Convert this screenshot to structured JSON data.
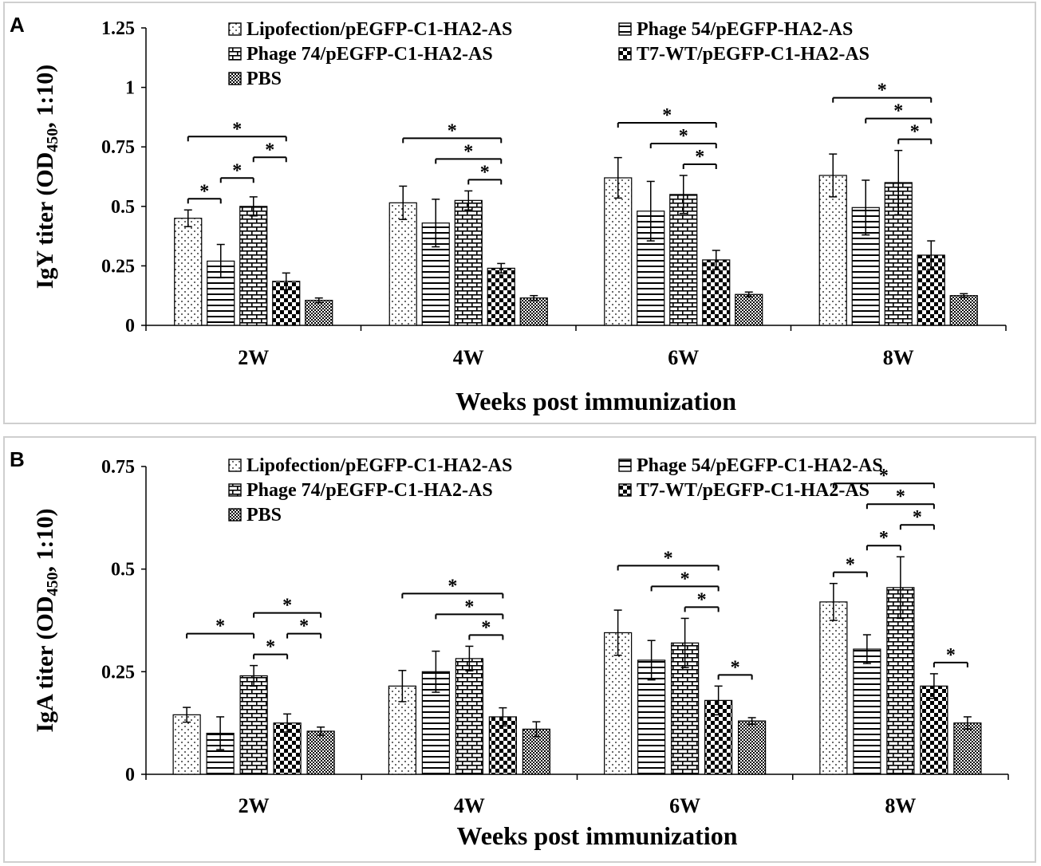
{
  "chart_data": [
    {
      "panel_label": "A",
      "type": "bar",
      "ylabel_main": "IgY titer (OD",
      "ylabel_sub": "450",
      "ylabel_tail": ", 1:10)",
      "xlabel": "Weeks post immunization",
      "categories": [
        "2W",
        "4W",
        "6W",
        "8W"
      ],
      "ylim": [
        0,
        1.25
      ],
      "yticks": [
        0,
        0.25,
        0.5,
        0.75,
        1,
        1.25
      ],
      "ytick_labels": [
        "0",
        "0.25",
        "0.5",
        "0.75",
        "1",
        "1.25"
      ],
      "legend": [
        "Lipofection/pEGFP-C1-HA2-AS",
        "Phage 54/pEGFP-HA2-AS",
        "Phage 74/pEGFP-C1-HA2-AS",
        "T7-WT/pEGFP-C1-HA2-AS",
        "PBS"
      ],
      "series": [
        {
          "name": "Lipofection/pEGFP-C1-HA2-AS",
          "pattern": "dots",
          "values": [
            0.45,
            0.515,
            0.62,
            0.63
          ],
          "errors": [
            0.035,
            0.07,
            0.085,
            0.09
          ]
        },
        {
          "name": "Phage 54/pEGFP-HA2-AS",
          "pattern": "hlines",
          "values": [
            0.27,
            0.43,
            0.48,
            0.495
          ],
          "errors": [
            0.07,
            0.1,
            0.125,
            0.115
          ]
        },
        {
          "name": "Phage 74/pEGFP-C1-HA2-AS",
          "pattern": "bricks",
          "values": [
            0.5,
            0.525,
            0.55,
            0.6
          ],
          "errors": [
            0.04,
            0.04,
            0.08,
            0.135
          ]
        },
        {
          "name": "T7-WT/pEGFP-C1-HA2-AS",
          "pattern": "checker",
          "values": [
            0.185,
            0.24,
            0.275,
            0.295
          ],
          "errors": [
            0.035,
            0.02,
            0.04,
            0.06
          ]
        },
        {
          "name": "PBS",
          "pattern": "fine",
          "values": [
            0.105,
            0.115,
            0.13,
            0.125
          ],
          "errors": [
            0.01,
            0.01,
            0.01,
            0.008
          ]
        }
      ],
      "significance": [
        {
          "group": 0,
          "from": 0,
          "to": 1,
          "label": "*"
        },
        {
          "group": 0,
          "from": 1,
          "to": 2,
          "label": "*"
        },
        {
          "group": 0,
          "from": 2,
          "to": 3,
          "label": "*"
        },
        {
          "group": 0,
          "from": 0,
          "to": 3,
          "label": "*"
        },
        {
          "group": 1,
          "from": 2,
          "to": 3,
          "label": "*"
        },
        {
          "group": 1,
          "from": 1,
          "to": 3,
          "label": "*"
        },
        {
          "group": 1,
          "from": 0,
          "to": 3,
          "label": "*"
        },
        {
          "group": 2,
          "from": 2,
          "to": 3,
          "label": "*"
        },
        {
          "group": 2,
          "from": 1,
          "to": 3,
          "label": "*"
        },
        {
          "group": 2,
          "from": 0,
          "to": 3,
          "label": "*"
        },
        {
          "group": 3,
          "from": 2,
          "to": 3,
          "label": "*"
        },
        {
          "group": 3,
          "from": 1,
          "to": 3,
          "label": "*"
        },
        {
          "group": 3,
          "from": 0,
          "to": 3,
          "label": "*"
        }
      ]
    },
    {
      "panel_label": "B",
      "type": "bar",
      "ylabel_main": "IgA titer (OD",
      "ylabel_sub": "450",
      "ylabel_tail": ", 1:10)",
      "xlabel": "Weeks post immunization",
      "categories": [
        "2W",
        "4W",
        "6W",
        "8W"
      ],
      "ylim": [
        0,
        0.75
      ],
      "yticks": [
        0,
        0.25,
        0.5,
        0.75
      ],
      "ytick_labels": [
        "0",
        "0.25",
        "0.5",
        "0.75"
      ],
      "legend": [
        "Lipofection/pEGFP-C1-HA2-AS",
        "Phage 54/pEGFP-C1-HA2-AS",
        "Phage 74/pEGFP-C1-HA2-AS",
        "T7-WT/pEGFP-C1-HA2-AS",
        "PBS"
      ],
      "series": [
        {
          "name": "Lipofection/pEGFP-C1-HA2-AS",
          "pattern": "dots",
          "values": [
            0.145,
            0.215,
            0.345,
            0.42
          ],
          "errors": [
            0.018,
            0.038,
            0.055,
            0.045
          ]
        },
        {
          "name": "Phage 54/pEGFP-C1-HA2-AS",
          "pattern": "hlines",
          "values": [
            0.1,
            0.25,
            0.278,
            0.305
          ],
          "errors": [
            0.04,
            0.05,
            0.048,
            0.035
          ]
        },
        {
          "name": "Phage 74/pEGFP-C1-HA2-AS",
          "pattern": "bricks",
          "values": [
            0.24,
            0.282,
            0.32,
            0.455
          ],
          "errors": [
            0.025,
            0.03,
            0.06,
            0.075
          ]
        },
        {
          "name": "T7-WT/pEGFP-C1-HA2-AS",
          "pattern": "checker",
          "values": [
            0.125,
            0.14,
            0.18,
            0.215
          ],
          "errors": [
            0.022,
            0.022,
            0.035,
            0.03
          ]
        },
        {
          "name": "PBS",
          "pattern": "fine",
          "values": [
            0.105,
            0.11,
            0.13,
            0.125
          ],
          "errors": [
            0.01,
            0.018,
            0.008,
            0.015
          ]
        }
      ],
      "significance": [
        {
          "group": 0,
          "from": 2,
          "to": 3,
          "label": "*"
        },
        {
          "group": 0,
          "from": 3,
          "to": 4,
          "label": "*"
        },
        {
          "group": 0,
          "from": 0,
          "to": 2,
          "label": "*"
        },
        {
          "group": 0,
          "from": 2,
          "to": 4,
          "label": "*"
        },
        {
          "group": 1,
          "from": 2,
          "to": 3,
          "label": "*"
        },
        {
          "group": 1,
          "from": 1,
          "to": 3,
          "label": "*"
        },
        {
          "group": 1,
          "from": 0,
          "to": 3,
          "label": "*"
        },
        {
          "group": 2,
          "from": 3,
          "to": 4,
          "label": "*"
        },
        {
          "group": 2,
          "from": 2,
          "to": 3,
          "label": "*"
        },
        {
          "group": 2,
          "from": 1,
          "to": 3,
          "label": "*"
        },
        {
          "group": 2,
          "from": 0,
          "to": 3,
          "label": "*"
        },
        {
          "group": 3,
          "from": 0,
          "to": 1,
          "label": "*"
        },
        {
          "group": 3,
          "from": 3,
          "to": 4,
          "label": "*"
        },
        {
          "group": 3,
          "from": 1,
          "to": 2,
          "label": "*"
        },
        {
          "group": 3,
          "from": 2,
          "to": 3,
          "label": "*"
        },
        {
          "group": 3,
          "from": 1,
          "to": 3,
          "label": "*"
        },
        {
          "group": 3,
          "from": 0,
          "to": 3,
          "label": "*"
        }
      ]
    }
  ]
}
